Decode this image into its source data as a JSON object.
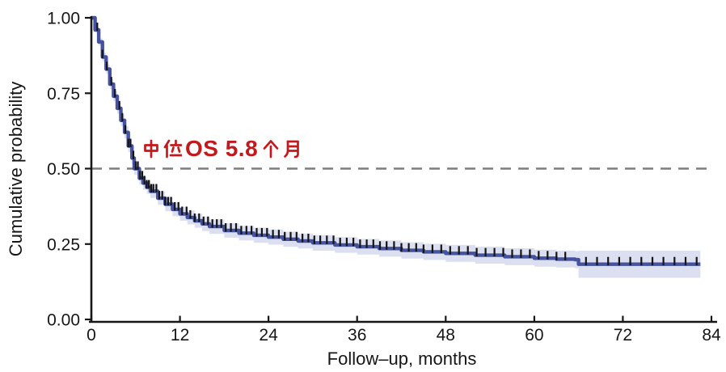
{
  "chart_data": {
    "type": "line",
    "subtype": "kaplan-meier-survival",
    "title": "",
    "xlabel": "Follow–up, months",
    "ylabel": "Cumulative probability",
    "xlim": [
      0,
      84
    ],
    "ylim": [
      0.0,
      1.0
    ],
    "x_ticks": [
      0,
      12,
      24,
      36,
      48,
      60,
      72,
      84
    ],
    "y_ticks": [
      {
        "value": 0.0,
        "label": "0.00"
      },
      {
        "value": 0.25,
        "label": "0.25"
      },
      {
        "value": 0.5,
        "label": "0.50"
      },
      {
        "value": 0.75,
        "label": "0.75"
      },
      {
        "value": 1.0,
        "label": "1.00"
      }
    ],
    "grid": "off",
    "legend": "none",
    "median_line": {
      "value": 0.5,
      "style": "dashed",
      "color": "#7d7d7d"
    },
    "annotation": {
      "text": "中位OS 5.8个月",
      "latin_part": "OS 5.8",
      "color": "#c3191c"
    },
    "series": [
      {
        "name": "overall-survival",
        "color": "#44529f",
        "ci_color": "#dcdff0",
        "censor_color": "#141414",
        "t": [
          0,
          0.5,
          1,
          1.5,
          2,
          2.5,
          3,
          3.5,
          4,
          4.5,
          5,
          5.5,
          5.8,
          6.5,
          7,
          7.5,
          8,
          9,
          10,
          11,
          12,
          13,
          14,
          15,
          16,
          18,
          20,
          22,
          24,
          26,
          28,
          30,
          33,
          36,
          39,
          42,
          45,
          48,
          52,
          56,
          60,
          63,
          65.5,
          66,
          82.5
        ],
        "survival": [
          1.0,
          0.96,
          0.92,
          0.87,
          0.83,
          0.78,
          0.74,
          0.7,
          0.66,
          0.62,
          0.575,
          0.535,
          0.5,
          0.468,
          0.452,
          0.438,
          0.425,
          0.402,
          0.382,
          0.365,
          0.35,
          0.338,
          0.327,
          0.317,
          0.308,
          0.295,
          0.286,
          0.279,
          0.273,
          0.266,
          0.26,
          0.254,
          0.247,
          0.241,
          0.235,
          0.229,
          0.224,
          0.219,
          0.213,
          0.208,
          0.203,
          0.2,
          0.198,
          0.183,
          0.183
        ],
        "ci_halfwidth": [
          0.005,
          0.009,
          0.012,
          0.014,
          0.015,
          0.016,
          0.017,
          0.018,
          0.019,
          0.02,
          0.02,
          0.021,
          0.021,
          0.021,
          0.022,
          0.022,
          0.022,
          0.022,
          0.023,
          0.023,
          0.023,
          0.023,
          0.023,
          0.024,
          0.024,
          0.024,
          0.024,
          0.025,
          0.025,
          0.025,
          0.025,
          0.026,
          0.026,
          0.026,
          0.027,
          0.027,
          0.027,
          0.028,
          0.028,
          0.028,
          0.028,
          0.028,
          0.028,
          0.045,
          0.045
        ],
        "censor_times": [
          0.8,
          1.5,
          2.1,
          2.7,
          3.2,
          3.8,
          4.2,
          4.6,
          5.0,
          5.3,
          5.7,
          6.0,
          6.3,
          6.6,
          6.9,
          7.2,
          7.5,
          7.8,
          8.1,
          8.4,
          8.8,
          9.2,
          9.6,
          10.0,
          10.4,
          10.8,
          11.3,
          11.8,
          12.3,
          12.9,
          13.4,
          14.0,
          14.6,
          15.2,
          15.8,
          16.4,
          17.0,
          17.6,
          18.2,
          18.9,
          19.6,
          20.3,
          21.0,
          21.7,
          22.4,
          23.1,
          23.8,
          24.6,
          25.4,
          26.2,
          27.0,
          27.8,
          28.6,
          29.4,
          30.2,
          31.0,
          31.9,
          32.8,
          33.7,
          34.6,
          35.5,
          36.4,
          37.3,
          38.2,
          39.1,
          40.0,
          41.0,
          42.0,
          43.0,
          44.0,
          45.0,
          46.2,
          47.4,
          48.6,
          49.8,
          51.0,
          52.2,
          53.4,
          54.6,
          55.8,
          57.0,
          58.2,
          59.4,
          60.6,
          61.8,
          63.0,
          64.2,
          67.0,
          68.5,
          70.0,
          71.5,
          73.0,
          74.5,
          76.0,
          77.5,
          79.0,
          80.5,
          82.0
        ]
      }
    ]
  }
}
